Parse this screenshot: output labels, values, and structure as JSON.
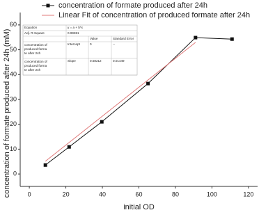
{
  "chart_data": {
    "type": "line",
    "x_label": "initial OD",
    "y_label": "concentration of  formate produced after 24h (mM)",
    "xlim": [
      -5,
      125
    ],
    "xticks": [
      0,
      20,
      40,
      60,
      80,
      100,
      120
    ],
    "ylim": [
      -5,
      65
    ],
    "yticks": [
      0,
      10,
      20,
      30,
      40,
      50,
      60
    ],
    "series": [
      {
        "name": "concentration of  formate produced after 24h",
        "color": "#111111",
        "marker": "square",
        "x": [
          8.8,
          21.8,
          39.7,
          65,
          91,
          111
        ],
        "values": [
          3.6,
          10.9,
          21,
          36.4,
          54.9,
          54.3
        ]
      },
      {
        "name": "Linear Fit of concentration of produced formate after 24h",
        "color": "#e07a7a",
        "marker": "none",
        "x": [
          8.8,
          91
        ],
        "values": [
          5.12,
          52.97
        ]
      }
    ],
    "fit_table": {
      "rows": [
        [
          "Equation",
          "y = a + b*x"
        ],
        [
          "Adj. R-Square",
          "0.99691"
        ],
        [
          "",
          "",
          "Value",
          "Standard Error"
        ],
        [
          [
            "concentration of",
            "produced forma",
            "te after 24h"
          ],
          "Intercept",
          "0",
          "--"
        ],
        [
          [
            "concentration of",
            "produced forma",
            "te after 24h"
          ],
          "Slope",
          "0.58212",
          "0.01449"
        ]
      ]
    }
  }
}
